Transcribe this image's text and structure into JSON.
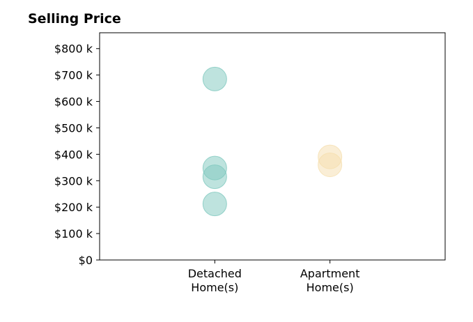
{
  "chart_data": {
    "type": "scatter",
    "title": "Selling Price",
    "categories": [
      {
        "lines": [
          "Detached",
          "Home(s)"
        ]
      },
      {
        "lines": [
          "Apartment",
          "Home(s)"
        ]
      }
    ],
    "series": [
      {
        "category_index": 0,
        "color": "#7ec8be",
        "values": [
          685000,
          348000,
          315000,
          212000
        ]
      },
      {
        "category_index": 1,
        "color": "#f5deae",
        "values": [
          390000,
          360000
        ]
      }
    ],
    "xlim": [
      -1,
      2
    ],
    "ylim": [
      0,
      860000
    ],
    "yticks": [
      {
        "value": 0,
        "label": "$0"
      },
      {
        "value": 100000,
        "label": "$100 k"
      },
      {
        "value": 200000,
        "label": "$200 k"
      },
      {
        "value": 300000,
        "label": "$300 k"
      },
      {
        "value": 400000,
        "label": "$400 k"
      },
      {
        "value": 500000,
        "label": "$500 k"
      },
      {
        "value": 600000,
        "label": "$600 k"
      },
      {
        "value": 700000,
        "label": "$700 k"
      },
      {
        "value": 800000,
        "label": "$800 k"
      }
    ],
    "grid": false,
    "legend": "none"
  }
}
